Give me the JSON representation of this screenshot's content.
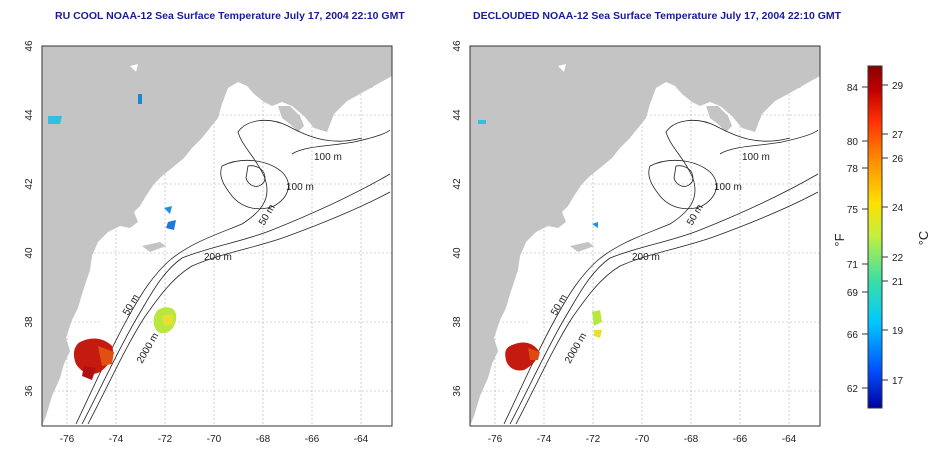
{
  "panels": [
    {
      "title": "RU COOL NOAA-12 Sea Surface Temperature July 17, 2004 22:10 GMT",
      "contour_labels": [
        "100 m",
        "100 m",
        "50 m",
        "200 m",
        "50 m",
        "2000 m"
      ]
    },
    {
      "title": "DECLOUDED NOAA-12 Sea Surface Temperature July 17, 2004 22:10 GMT",
      "contour_labels": [
        "100 m",
        "100 m",
        "50 m",
        "200 m",
        "50 m",
        "2000 m"
      ]
    }
  ],
  "map_axes": {
    "lon_ticks": [
      "-76",
      "-74",
      "-72",
      "-70",
      "-68",
      "-66",
      "-64"
    ],
    "lat_ticks": [
      "46",
      "44",
      "42",
      "40",
      "38",
      "36"
    ],
    "lon_range": [
      -77,
      -63
    ],
    "lat_range": [
      35,
      46
    ]
  },
  "colorbar": {
    "fahrenheit_unit": "°F",
    "celsius_unit": "°C",
    "fahrenheit_ticks": [
      "84",
      "80",
      "78",
      "75",
      "71",
      "69",
      "66",
      "62"
    ],
    "celsius_ticks": [
      "29",
      "27",
      "26",
      "24",
      "22",
      "21",
      "19",
      "17"
    ],
    "range_c": [
      16,
      30
    ],
    "colors": [
      "#0000a0",
      "#0050ff",
      "#00c8ff",
      "#40e0a0",
      "#c0f040",
      "#ffe000",
      "#ff9000",
      "#ff3000",
      "#c00000",
      "#8a0000"
    ]
  },
  "colors": {
    "land": "#c4c4c4",
    "ocean": "#ffffff",
    "title": "#1a1a9a",
    "grid": "#b0b0b0",
    "contour": "#222222"
  }
}
